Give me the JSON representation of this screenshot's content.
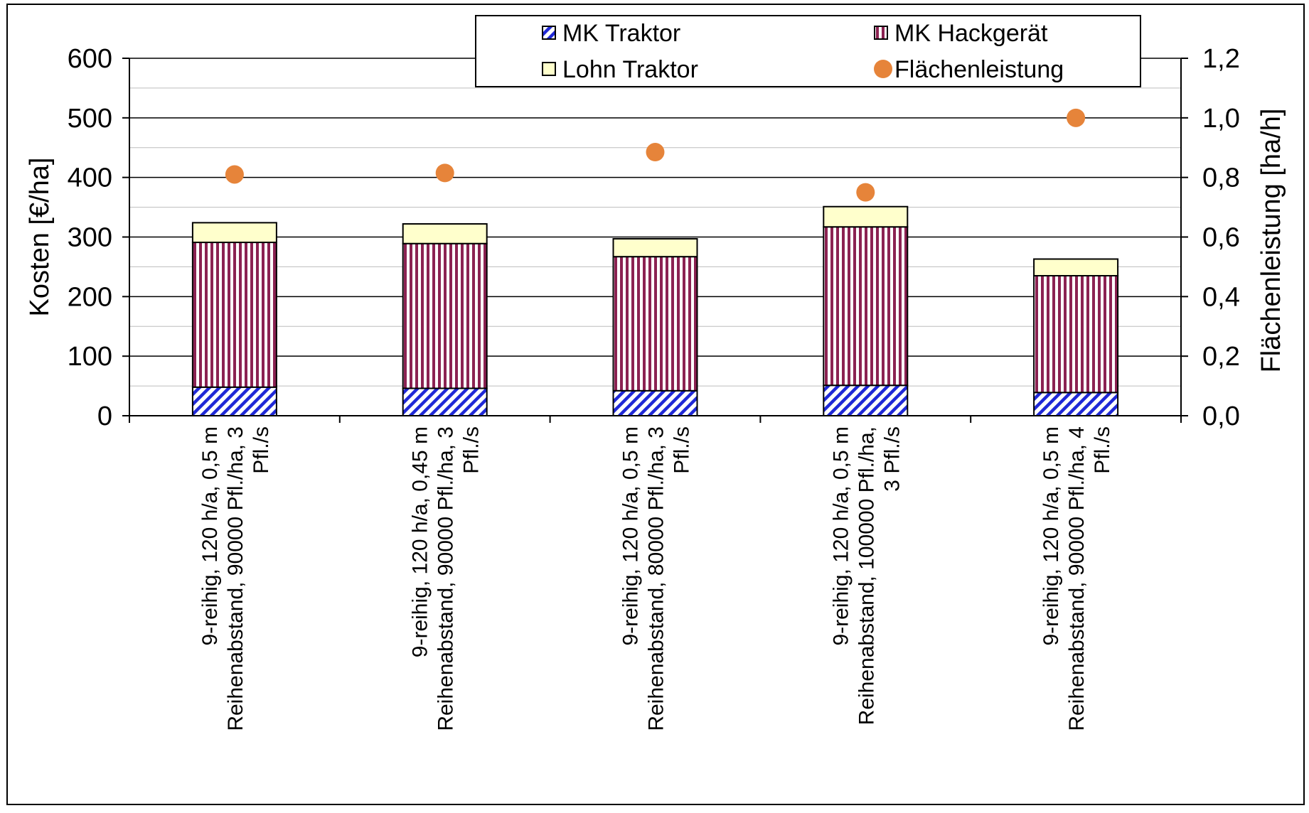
{
  "chart_data": {
    "type": "bar",
    "stacked": true,
    "categories": [
      [
        "9-reihig, 120 h/a, 0,5 m",
        "Reihenabstand, 90000 Pfl./ha, 3",
        "Pfl./s"
      ],
      [
        "9-reihig, 120 h/a, 0,45 m",
        "Reihenabstand, 90000 Pfl./ha, 3",
        "Pfl./s"
      ],
      [
        "9-reihig, 120 h/a, 0,5 m",
        "Reihenabstand, 80000 Pfl./ha, 3",
        "Pfl./s"
      ],
      [
        "9-reihig, 120 h/a, 0,5 m",
        "Reihenabstand, 100000 Pfl./ha,",
        "3 Pfl./s"
      ],
      [
        "9-reihig, 120 h/a, 0,5 m",
        "Reihenabstand, 90000 Pfl./ha, 4",
        "Pfl./s"
      ]
    ],
    "series": [
      {
        "name": "MK Traktor",
        "values": [
          48,
          46,
          42,
          51,
          39
        ],
        "color": "#1f28d6",
        "pattern": "diagonal-hatch"
      },
      {
        "name": "MK Hackgerät",
        "values": [
          243,
          243,
          225,
          266,
          196
        ],
        "color": "#8b2252",
        "pattern": "vertical-stripes"
      },
      {
        "name": "Lohn Traktor",
        "values": [
          33,
          33,
          30,
          34,
          28
        ],
        "color": "#ffffcc",
        "pattern": "solid"
      }
    ],
    "secondary_series": {
      "name": "Flächenleistung",
      "type": "scatter",
      "values": [
        0.81,
        0.815,
        0.885,
        0.75,
        1.0
      ],
      "color": "#e6843a"
    },
    "ylabel": "Kosten [€/ha]",
    "ylim": [
      0,
      600
    ],
    "yticks": [
      "0",
      "100",
      "200",
      "300",
      "400",
      "500",
      "600"
    ],
    "y2label": "Flächenleistung [ha/h]",
    "y2lim": [
      0,
      1.2
    ],
    "y2ticks": [
      "0,0",
      "0,2",
      "0,4",
      "0,6",
      "0,8",
      "1,0",
      "1,2"
    ],
    "grid": true,
    "legend_position": "top"
  }
}
